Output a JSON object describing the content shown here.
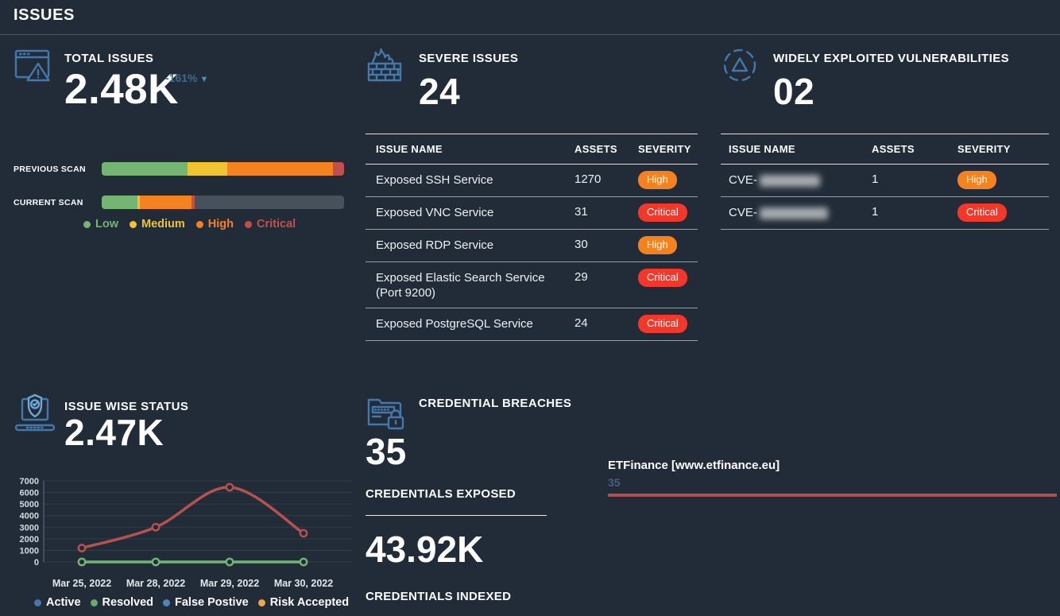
{
  "page": {
    "title": "ISSUES"
  },
  "colors": {
    "background": "#222c38",
    "accent_icon_blue": "#4478ab",
    "delta_text": "#3e6b8c",
    "delta_arrow": "#4a8fc0",
    "badge_high": "#f5821f",
    "badge_critical": "#f43728",
    "levels": {
      "low": "#74b573",
      "medium": "#f0c330",
      "high": "#f58220",
      "critical": "#c0504d",
      "none": "#47515c"
    },
    "line_red": "#b5524f",
    "line_green": "#74b573",
    "breach_bar": "#b0504e",
    "domain_value_text": "#44607d"
  },
  "total_issues": {
    "icon": "browser-alert-icon",
    "title": "TOTAL ISSUES",
    "value": "2.48K",
    "delta": "-161%",
    "delta_direction": "down"
  },
  "severe_issues": {
    "icon": "firewall-fire-icon",
    "title": "SEVERE ISSUES",
    "value": "24",
    "columns": [
      "ISSUE NAME",
      "ASSETS",
      "SEVERITY"
    ],
    "rows": [
      {
        "name": "Exposed SSH Service",
        "assets": "1270",
        "severity": "High"
      },
      {
        "name": "Exposed VNC Service",
        "assets": "31",
        "severity": "Critical"
      },
      {
        "name": "Exposed RDP Service",
        "assets": "30",
        "severity": "High"
      },
      {
        "name": "Exposed Elastic Search Service (Port 9200)",
        "assets": "29",
        "severity": "Critical"
      },
      {
        "name": "Exposed PostgreSQL Service",
        "assets": "24",
        "severity": "Critical"
      }
    ]
  },
  "widely_exploited": {
    "icon": "dashed-circle-triangle-icon",
    "title": "WIDELY EXPLOITED VULNERABILITIES",
    "value": "02",
    "columns": [
      "ISSUE NAME",
      "ASSETS",
      "SEVERITY"
    ],
    "rows": [
      {
        "name_prefix": "CVE-",
        "masked": true,
        "masked_width": 76,
        "assets": "1",
        "severity": "High"
      },
      {
        "name_prefix": "CVE-",
        "masked": true,
        "masked_width": 86,
        "assets": "1",
        "severity": "Critical"
      }
    ]
  },
  "issue_wise_status": {
    "icon": "laptop-shield-icon",
    "title": "ISSUE WISE STATUS",
    "value": "2.47K"
  },
  "credential_breaches": {
    "icon": "folder-lock-icon",
    "title": "CREDENTIAL BREACHES",
    "exposed_value": "35",
    "exposed_label": "CREDENTIALS EXPOSED",
    "indexed_value": "43.92K",
    "indexed_label": "CREDENTIALS INDEXED"
  },
  "chart_data": [
    {
      "id": "scan_comparison",
      "type": "stacked-bar-horizontal",
      "rows": [
        {
          "id": "previous",
          "label": "PREVIOUS SCAN",
          "segments": [
            {
              "level": "low",
              "pct": 35.5
            },
            {
              "level": "medium",
              "pct": 16.2
            },
            {
              "level": "high",
              "pct": 43.8
            },
            {
              "level": "critical",
              "pct": 4.5
            }
          ]
        },
        {
          "id": "current",
          "label": "CURRENT SCAN",
          "segments": [
            {
              "level": "low",
              "pct": 14.8
            },
            {
              "level": "medium",
              "pct": 0.8
            },
            {
              "level": "high",
              "pct": 21.4
            },
            {
              "level": "critical",
              "pct": 1.5
            },
            {
              "level": "none",
              "pct": 61.5
            }
          ]
        }
      ],
      "legend": [
        {
          "label": "Low",
          "color": "#74b573"
        },
        {
          "label": "Medium",
          "color": "#f0c330"
        },
        {
          "label": "High",
          "color": "#f58220"
        },
        {
          "label": "Critical",
          "color": "#c0504d"
        }
      ],
      "legend_position": "bottom"
    },
    {
      "id": "issue_wise_status",
      "type": "line",
      "title": "ISSUE WISE STATUS",
      "x": [
        "Mar 25, 2022",
        "Mar 28, 2022",
        "Mar 29, 2022",
        "Mar 30, 2022"
      ],
      "series": [
        {
          "name": "Active",
          "color": "#b5524f",
          "values": [
            1200,
            3000,
            6450,
            2480
          ]
        },
        {
          "name": "Resolved",
          "color": "#74b573",
          "values": [
            0,
            0,
            0,
            0
          ]
        }
      ],
      "legend": [
        {
          "label": "Active",
          "color": "#4a76a4"
        },
        {
          "label": "Resolved",
          "color": "#6aa86f"
        },
        {
          "label": "False Postive",
          "color": "#4f85ba"
        },
        {
          "label": "Risk Accepted",
          "color": "#e5a93d"
        }
      ],
      "ylim": [
        0,
        7000
      ],
      "yticks": [
        0,
        1000,
        2000,
        3000,
        4000,
        5000,
        6000,
        7000
      ],
      "grid": true,
      "legend_position": "bottom"
    },
    {
      "id": "breach_domains",
      "type": "bar",
      "categories": [
        "ETFinance [www.etfinance.eu]"
      ],
      "values": [
        35
      ],
      "xmax": 35,
      "bar_color": "#b0504e"
    }
  ]
}
